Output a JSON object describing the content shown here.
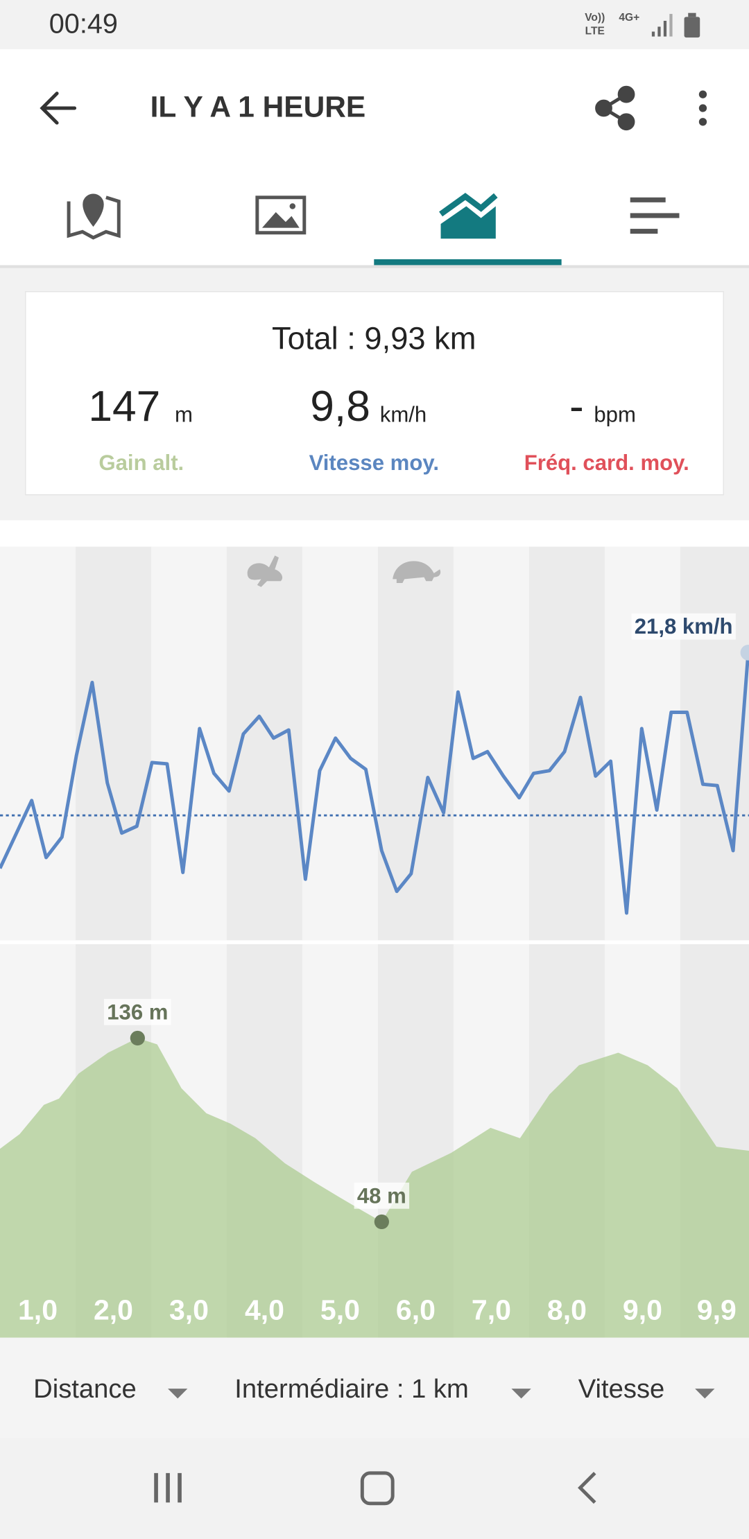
{
  "status_bar": {
    "time": "00:49",
    "volte_top": "Vo))",
    "volte_bottom": "LTE",
    "network": "4G+"
  },
  "header": {
    "title": "IL Y A 1 HEURE"
  },
  "summary": {
    "total": "Total : 9,93 km",
    "stats": [
      {
        "value": "147",
        "unit": "m",
        "label": "Gain alt."
      },
      {
        "value": "9,8",
        "unit": "km/h",
        "label": "Vitesse moy."
      },
      {
        "value": "-",
        "unit": "bpm",
        "label": "Fréq. card. moy."
      }
    ]
  },
  "chart_data": [
    {
      "type": "line",
      "color": "#5b87c5",
      "x": [
        0,
        0.42,
        0.61,
        0.82,
        1.01,
        1.22,
        1.42,
        1.61,
        1.81,
        2.01,
        2.21,
        2.42,
        2.64,
        2.83,
        3.03,
        3.22,
        3.43,
        3.62,
        3.82,
        4.04,
        4.23,
        4.44,
        4.64,
        4.84,
        5.05,
        5.25,
        5.44,
        5.66,
        5.87,
        6.06,
        6.26,
        6.45,
        6.66,
        6.87,
        7.06,
        7.27,
        7.47,
        7.68,
        7.88,
        8.08,
        8.29,
        8.49,
        8.69,
        8.88,
        9.09,
        9.3,
        9.49,
        9.7,
        9.9
      ],
      "values": [
        5.9,
        10.9,
        6.7,
        8.2,
        14.2,
        19.6,
        12.2,
        8.5,
        9.0,
        13.7,
        13.6,
        5.6,
        16.2,
        12.9,
        11.6,
        15.8,
        17.1,
        15.5,
        16.1,
        5.1,
        13.1,
        15.5,
        14.0,
        13.2,
        7.2,
        4.2,
        5.5,
        12.6,
        10.0,
        18.9,
        14.0,
        14.5,
        12.7,
        11.1,
        12.9,
        13.1,
        14.5,
        18.5,
        12.7,
        13.8,
        2.6,
        16.2,
        10.2,
        17.4,
        17.4,
        12.1,
        12.0,
        7.2,
        21.8
      ],
      "xlim": [
        0,
        9.91
      ],
      "ylim": [
        0.6,
        29.6
      ],
      "average": 9.8,
      "annotations": [
        {
          "label": "21,8 km/h",
          "x": 9.9,
          "y": 21.8
        }
      ]
    },
    {
      "type": "area",
      "color": "#a9ca8d",
      "x": [
        0,
        0.26,
        0.58,
        0.78,
        1.04,
        1.43,
        1.82,
        2.08,
        2.4,
        2.73,
        3.05,
        3.38,
        3.77,
        4.16,
        4.48,
        4.81,
        5.05,
        5.45,
        5.97,
        6.49,
        6.88,
        7.27,
        7.66,
        8.18,
        8.57,
        8.96,
        9.48,
        9.91
      ],
      "values": [
        83,
        90,
        104,
        107,
        119,
        129,
        136,
        133,
        112,
        100,
        95,
        88,
        76,
        67,
        60,
        53,
        48,
        72,
        81,
        93,
        88,
        109,
        123,
        129,
        123,
        112,
        84,
        82
      ],
      "xlim": [
        0,
        9.91
      ],
      "ylim": [
        -7.5,
        181
      ],
      "annotations": [
        {
          "label": "136 m",
          "x": 1.82,
          "y": 136
        },
        {
          "label": "48 m",
          "x": 5.05,
          "y": 48
        }
      ]
    }
  ],
  "distance_labels": [
    "1,0",
    "2,0",
    "3,0",
    "4,0",
    "5,0",
    "6,0",
    "7,0",
    "8,0",
    "9,0",
    "9,9"
  ],
  "footer": {
    "options": [
      "Distance",
      "Intermédiaire : 1 km",
      "Vitesse"
    ]
  }
}
